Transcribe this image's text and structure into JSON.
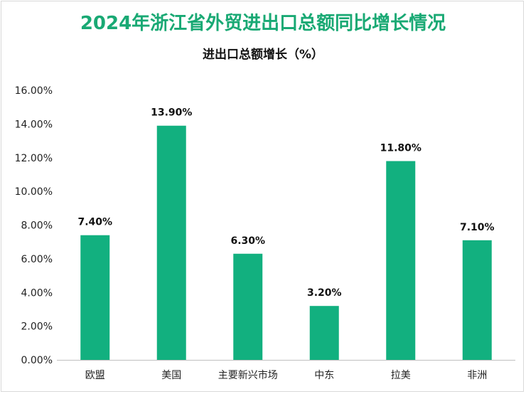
{
  "title": "2024年浙江省外贸进出口总额同比增长情况",
  "chart_data": {
    "type": "bar",
    "title": "进出口总额增长（%）",
    "categories": [
      "欧盟",
      "美国",
      "主要新兴市场",
      "中东",
      "拉美",
      "非洲"
    ],
    "values": [
      7.4,
      13.9,
      6.3,
      3.2,
      11.8,
      7.1
    ],
    "data_labels": [
      "7.40%",
      "13.90%",
      "6.30%",
      "3.20%",
      "11.80%",
      "7.10%"
    ],
    "ylim": [
      0,
      16
    ],
    "yticks": [
      0,
      2,
      4,
      6,
      8,
      10,
      12,
      14,
      16
    ],
    "ytick_labels": [
      "0.00%",
      "2.00%",
      "4.00%",
      "6.00%",
      "8.00%",
      "10.00%",
      "12.00%",
      "14.00%",
      "16.00%"
    ],
    "xlabel": "",
    "ylabel": "",
    "grid": false,
    "bar_color": "#12b07f"
  }
}
